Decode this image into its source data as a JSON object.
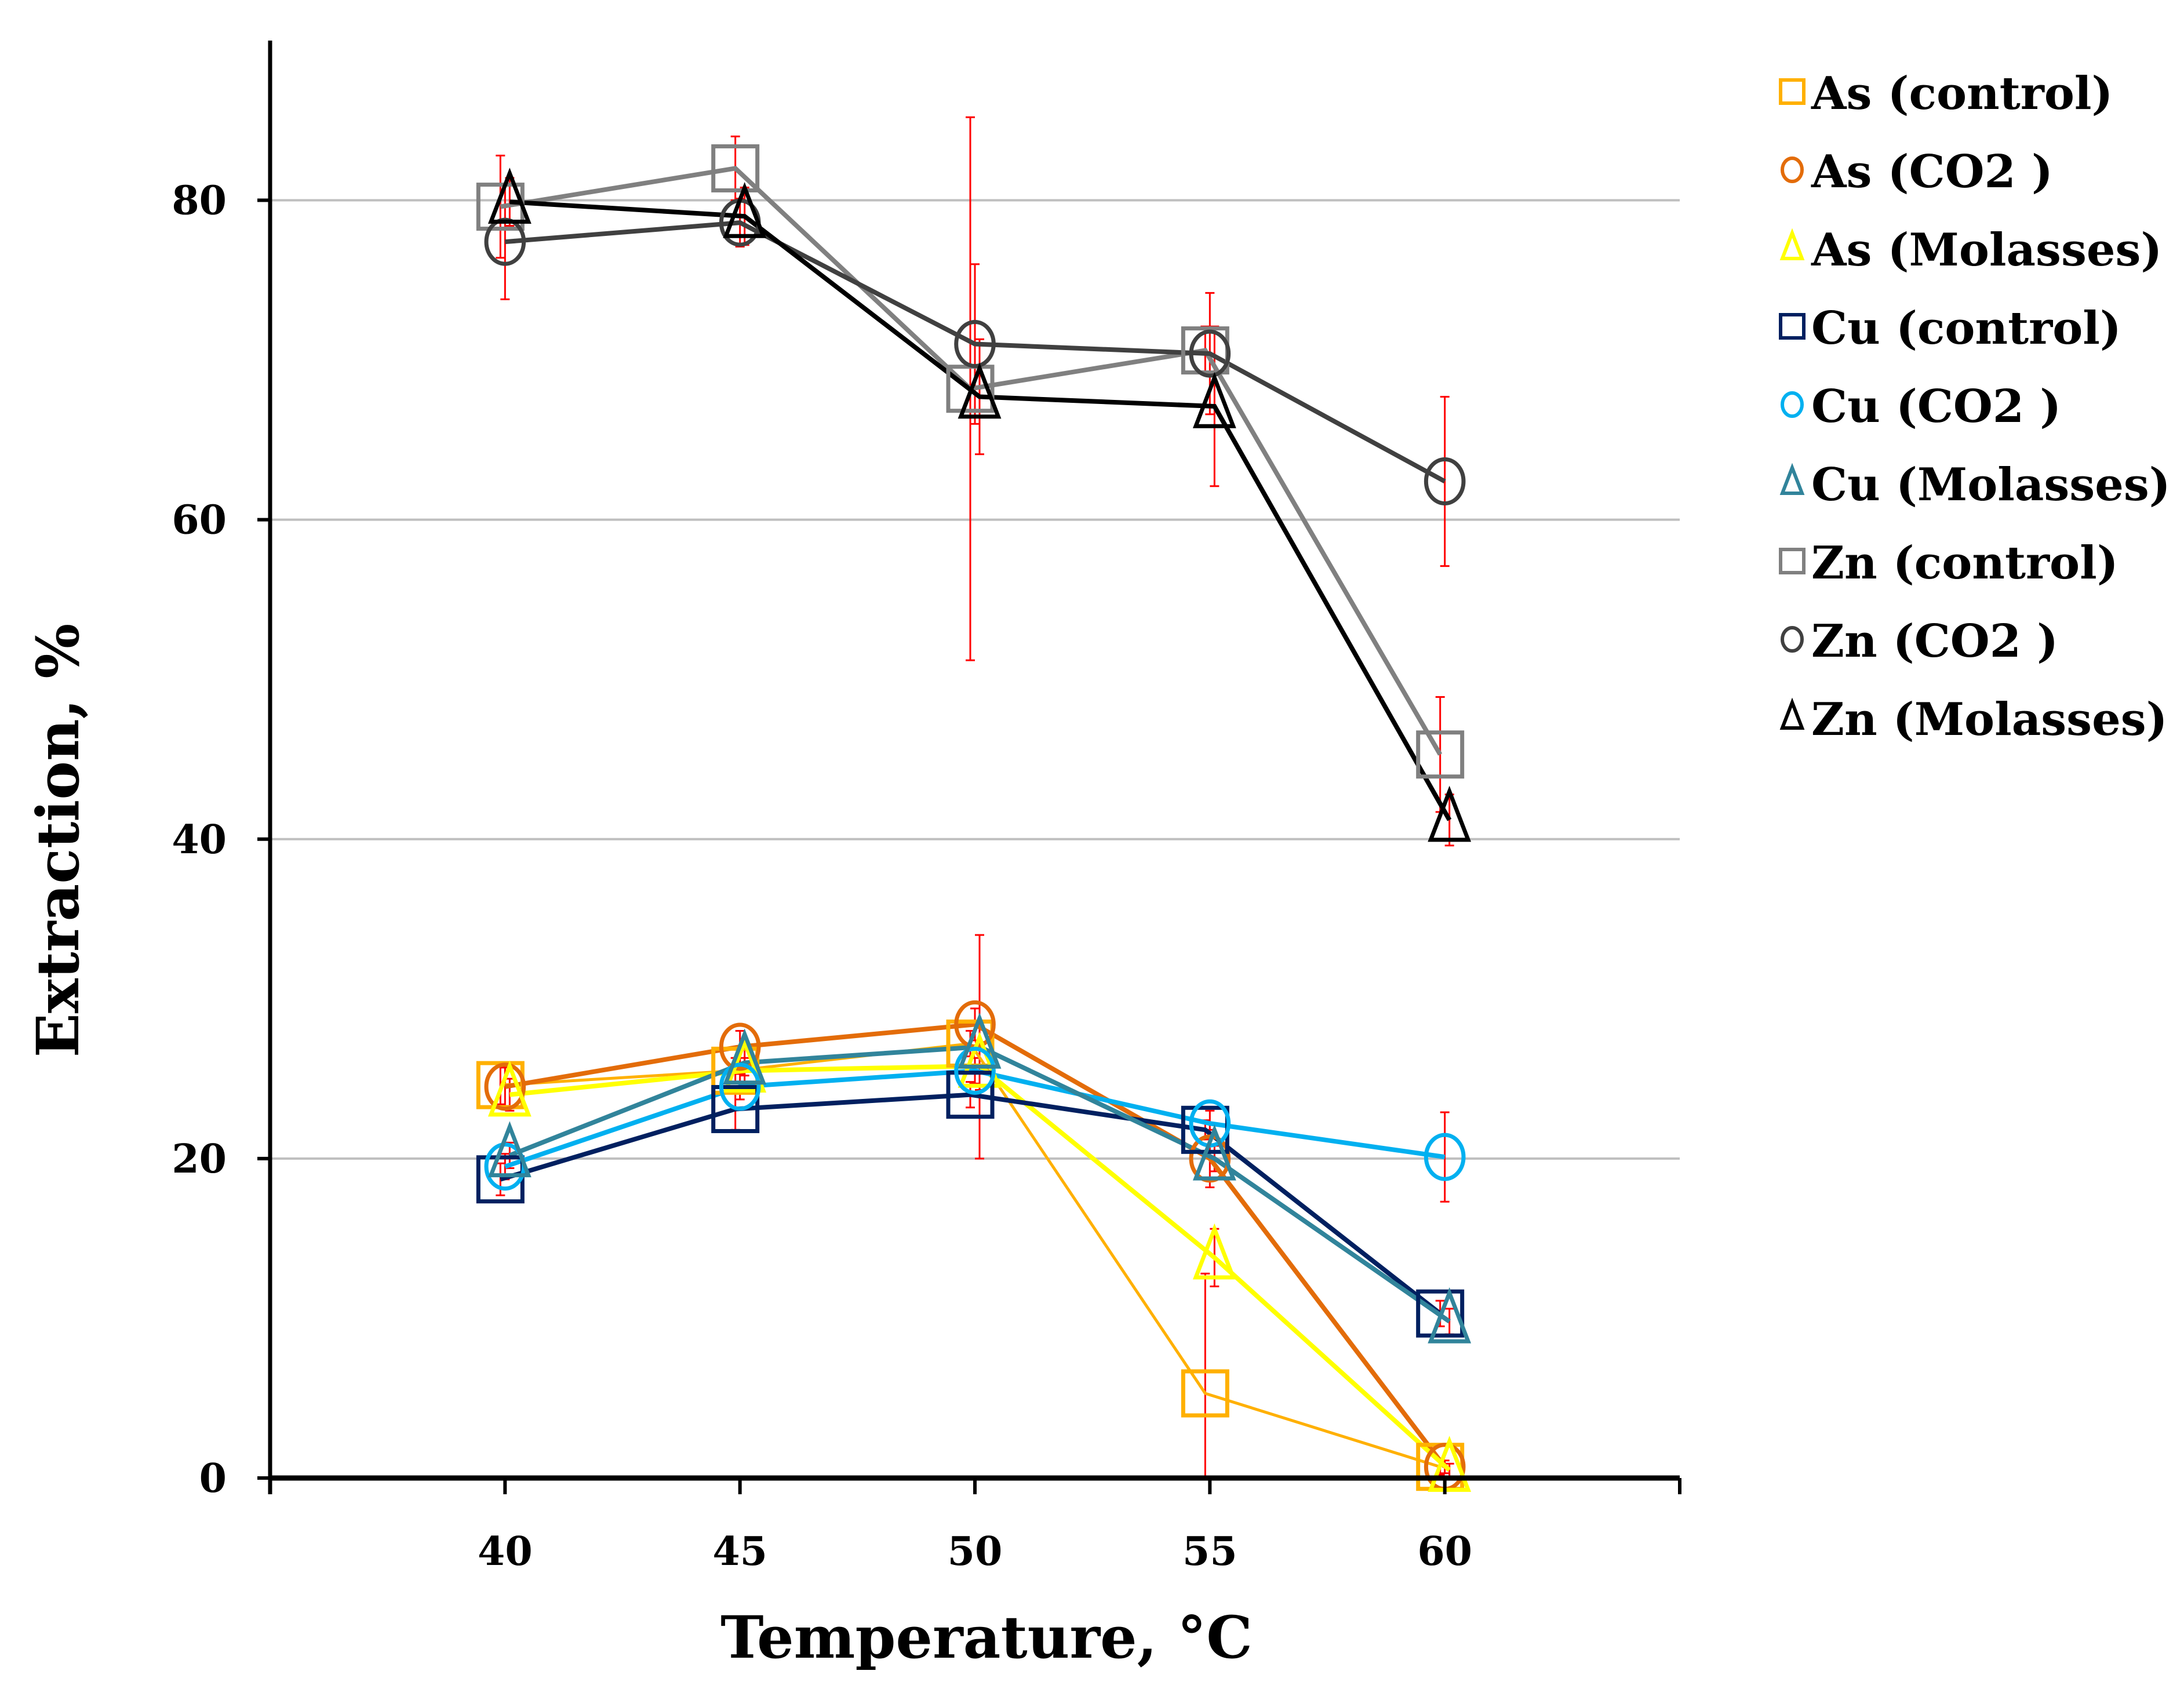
{
  "chart_data": {
    "type": "line",
    "title": "",
    "xlabel": "Temperature,  °C",
    "ylabel": "Extraction, %",
    "xlim": [
      35,
      65
    ],
    "ylim": [
      0,
      90
    ],
    "x": [
      40,
      45,
      50,
      55,
      60
    ],
    "xticks": [
      40,
      45,
      50,
      55,
      60
    ],
    "yticks": [
      0,
      20,
      40,
      60,
      80
    ],
    "grid": "horizontal",
    "legend_position": "right",
    "error_bar_color": "#FF0000",
    "series": [
      {
        "name": "As (control)",
        "color": "#FFB000",
        "marker": "square",
        "values": [
          24.6,
          25.5,
          27.2,
          5.3,
          0.7
        ],
        "errors": [
          1.2,
          0.8,
          0.8,
          7.5,
          0.5
        ]
      },
      {
        "name": "As (CO2 )",
        "color": "#E36C09",
        "marker": "circle",
        "values": [
          24.5,
          27.0,
          28.4,
          20.0,
          0.7
        ],
        "errors": [
          1.2,
          1.0,
          1.0,
          1.8,
          0.4
        ]
      },
      {
        "name": "As (Molasses)",
        "color": "#FFFF00",
        "marker": "triangle",
        "values": [
          24.0,
          25.5,
          25.8,
          13.8,
          0.5
        ],
        "errors": [
          1.0,
          0.8,
          1.5,
          1.8,
          0.4
        ]
      },
      {
        "name": "Cu (control)",
        "color": "#002060",
        "marker": "square",
        "values": [
          18.7,
          23.1,
          24.0,
          21.8,
          10.3
        ],
        "errors": [
          1.0,
          1.3,
          0.8,
          0.6,
          0.8
        ]
      },
      {
        "name": "Cu (CO2 )",
        "color": "#00B0F0",
        "marker": "circle",
        "values": [
          19.5,
          24.5,
          25.5,
          22.2,
          20.1
        ],
        "errors": [
          0.8,
          0.8,
          0.8,
          0.8,
          2.8
        ]
      },
      {
        "name": "Cu (Molasses)",
        "color": "#31849B",
        "marker": "triangle",
        "values": [
          20.2,
          26.0,
          27.0,
          20.0,
          9.8
        ],
        "errors": [
          0.8,
          0.8,
          7.0,
          0.8,
          0.8
        ]
      },
      {
        "name": "Zn (control)",
        "color": "#808080",
        "marker": "square",
        "values": [
          79.6,
          82.0,
          68.2,
          70.6,
          45.3
        ],
        "errors": [
          3.2,
          2.0,
          17.0,
          1.5,
          3.6
        ]
      },
      {
        "name": "Zn (CO2 )",
        "color": "#404040",
        "marker": "circle",
        "values": [
          77.4,
          78.6,
          71.0,
          70.4,
          62.4
        ],
        "errors": [
          3.6,
          1.5,
          5.0,
          3.8,
          5.3
        ]
      },
      {
        "name": "Zn (Molasses)",
        "color": "#000000",
        "marker": "triangle",
        "values": [
          79.9,
          79.0,
          67.7,
          67.1,
          41.2
        ],
        "errors": [
          1.5,
          1.8,
          3.6,
          5.0,
          1.6
        ]
      }
    ]
  }
}
